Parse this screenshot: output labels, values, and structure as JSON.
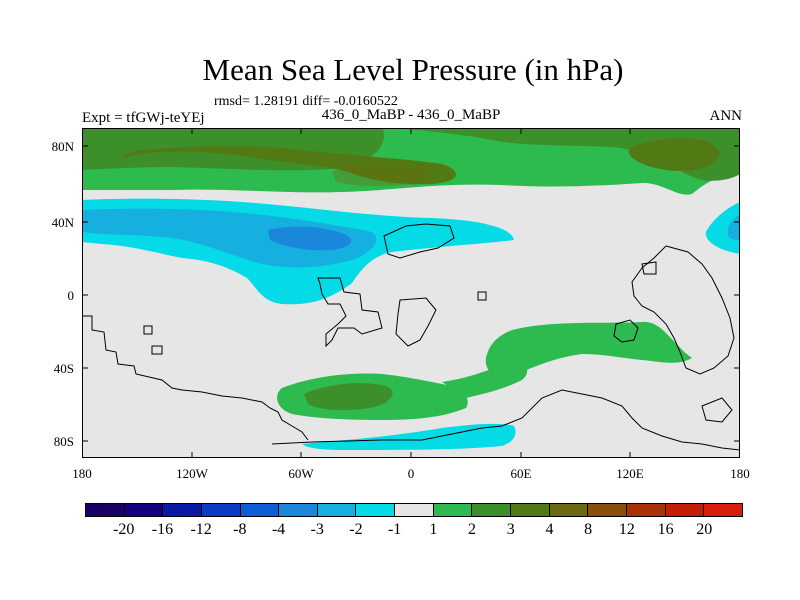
{
  "title": "Mean Sea Level Pressure (in hPa)",
  "stats": "rmsd= 1.28191 diff= -0.0160522",
  "expt_label": "Expt = tfGWj-teYEj",
  "comparison_label": "436_0_MaBP - 436_0_MaBP",
  "season": "ANN",
  "y_ticks": [
    "80N",
    "40N",
    "0",
    "40S",
    "80S"
  ],
  "x_ticks": [
    "180",
    "120W",
    "60W",
    "0",
    "60E",
    "120E",
    "180"
  ],
  "colorbar_labels": [
    "-20",
    "-16",
    "-12",
    "-8",
    "-4",
    "-3",
    "-2",
    "-1",
    "1",
    "2",
    "3",
    "4",
    "8",
    "12",
    "16",
    "20"
  ],
  "colorbar_colors": [
    "#1a0066",
    "#16007f",
    "#0a1aa6",
    "#0b3cc4",
    "#0d5fd6",
    "#1a87db",
    "#16b0e0",
    "#05dbe6",
    "#e6e6e6",
    "#2dbb4f",
    "#3d8f2a",
    "#527a14",
    "#6d6910",
    "#8a4f0a",
    "#a83206",
    "#c41e06",
    "#d71f0a"
  ],
  "chart_data": {
    "type": "map",
    "title": "Mean Sea Level Pressure (in hPa)",
    "units": "hPa",
    "lon_range": [
      -180,
      180
    ],
    "lat_range": [
      -90,
      90
    ],
    "contour_levels": [
      -20,
      -16,
      -12,
      -8,
      -4,
      -3,
      -2,
      -1,
      1,
      2,
      3,
      4,
      8,
      12,
      16,
      20
    ]
  }
}
